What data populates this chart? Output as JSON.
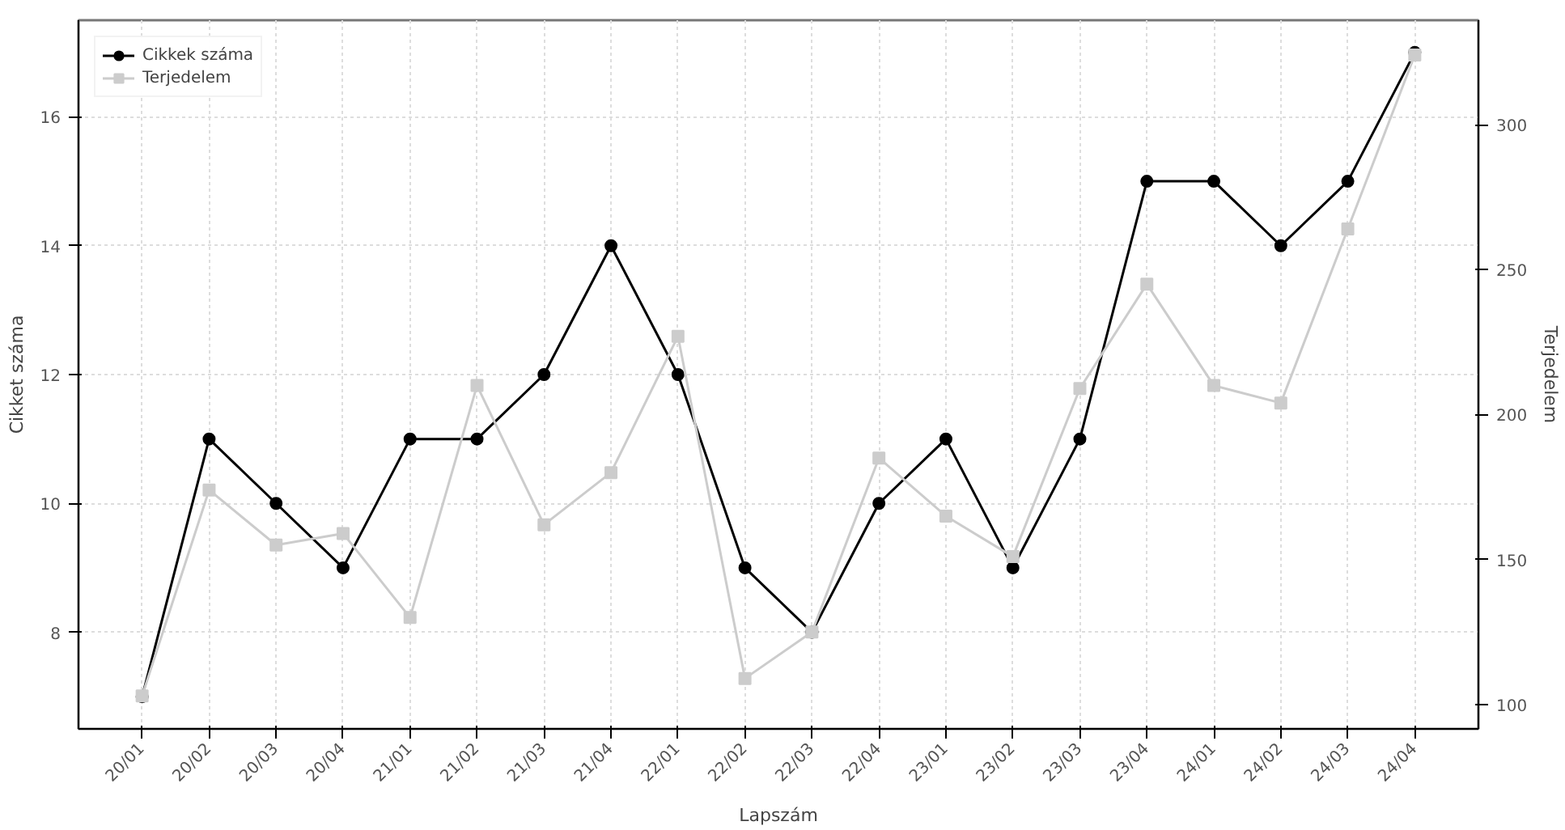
{
  "chart_data": {
    "type": "line",
    "xlabel": "Lapszám",
    "ylabel": "Cikket száma",
    "y2label": "Terjedelem",
    "categories": [
      "20/01",
      "20/02",
      "20/03",
      "20/04",
      "21/01",
      "21/02",
      "21/03",
      "21/04",
      "22/01",
      "22/02",
      "22/03",
      "22/04",
      "23/01",
      "23/02",
      "23/03",
      "23/04",
      "24/01",
      "24/02",
      "24/03",
      "24/04"
    ],
    "series": [
      {
        "name": "Cikkek száma",
        "color": "#000000",
        "marker": "circle",
        "values": [
          7,
          11,
          10,
          9,
          11,
          11,
          12,
          14,
          12,
          9,
          8,
          10,
          11,
          9,
          11,
          15,
          15,
          14,
          15,
          17
        ]
      },
      {
        "name": "Terjedelem",
        "color": "#cccccc",
        "marker": "square",
        "axis": "y2",
        "values": [
          103,
          174,
          155,
          159,
          130,
          210,
          162,
          180,
          227,
          109,
          125,
          185,
          165,
          151,
          209,
          245,
          210,
          204,
          264,
          324
        ]
      }
    ],
    "ylim": [
      6.5,
      17.5
    ],
    "yticks": [
      8,
      10,
      12,
      14,
      16
    ],
    "y2lim": [
      91.6,
      336
    ],
    "y2ticks": [
      100,
      150,
      200,
      250,
      300
    ],
    "grid": true,
    "legend": "top left",
    "line_style": "solid"
  }
}
